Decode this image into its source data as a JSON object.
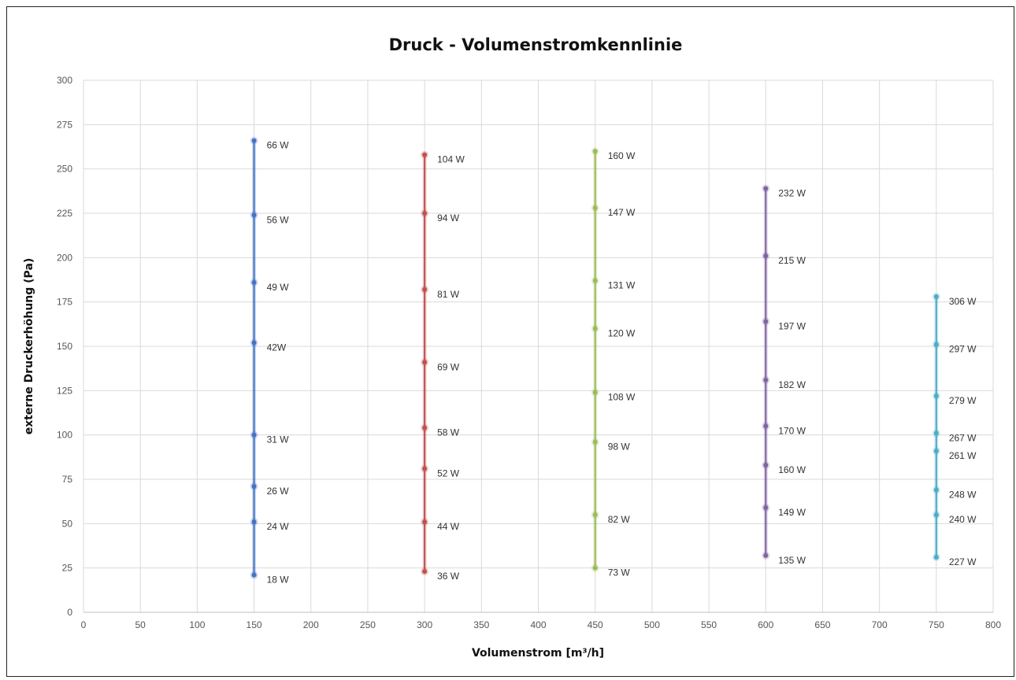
{
  "chart_data": {
    "type": "scatter",
    "title": "Druck - Volumenstromkennlinie",
    "xlabel": "Volumenstrom [m³/h]",
    "ylabel": "externe Druckerhöhung (Pa)",
    "xlim": [
      0,
      800
    ],
    "ylim": [
      0,
      300
    ],
    "x_ticks": [
      0,
      50,
      100,
      150,
      200,
      250,
      300,
      350,
      400,
      450,
      500,
      550,
      600,
      650,
      700,
      750,
      800
    ],
    "y_ticks": [
      0,
      25,
      50,
      75,
      100,
      125,
      150,
      175,
      200,
      225,
      250,
      275,
      300
    ],
    "grid": true,
    "legend": "none",
    "series": [
      {
        "color": "#4472c4",
        "x": 150,
        "points": [
          {
            "y": 266,
            "label": "66 W"
          },
          {
            "y": 224,
            "label": "56 W"
          },
          {
            "y": 186,
            "label": "49 W"
          },
          {
            "y": 152,
            "label": "42W"
          },
          {
            "y": 100,
            "label": "31 W"
          },
          {
            "y": 71,
            "label": "26 W"
          },
          {
            "y": 51,
            "label": "24 W"
          },
          {
            "y": 21,
            "label": "18 W"
          }
        ]
      },
      {
        "color": "#c0504d",
        "x": 300,
        "points": [
          {
            "y": 258,
            "label": "104 W"
          },
          {
            "y": 225,
            "label": "94 W"
          },
          {
            "y": 182,
            "label": "81 W"
          },
          {
            "y": 141,
            "label": "69 W"
          },
          {
            "y": 104,
            "label": "58 W"
          },
          {
            "y": 81,
            "label": "52 W"
          },
          {
            "y": 51,
            "label": "44 W"
          },
          {
            "y": 23,
            "label": "36 W"
          }
        ]
      },
      {
        "color": "#9bbb59",
        "x": 450,
        "points": [
          {
            "y": 260,
            "label": "160 W"
          },
          {
            "y": 228,
            "label": "147 W"
          },
          {
            "y": 187,
            "label": "131 W"
          },
          {
            "y": 160,
            "label": "120 W"
          },
          {
            "y": 124,
            "label": "108 W"
          },
          {
            "y": 96,
            "label": "98 W"
          },
          {
            "y": 55,
            "label": "82 W"
          },
          {
            "y": 25,
            "label": "73 W"
          }
        ]
      },
      {
        "color": "#8064a2",
        "x": 600,
        "points": [
          {
            "y": 239,
            "label": "232 W"
          },
          {
            "y": 201,
            "label": "215 W"
          },
          {
            "y": 164,
            "label": "197 W"
          },
          {
            "y": 131,
            "label": "182 W"
          },
          {
            "y": 105,
            "label": "170 W"
          },
          {
            "y": 83,
            "label": "160 W"
          },
          {
            "y": 59,
            "label": "149 W"
          },
          {
            "y": 32,
            "label": "135 W"
          }
        ]
      },
      {
        "color": "#4bacc6",
        "x": 750,
        "points": [
          {
            "y": 178,
            "label": "306 W"
          },
          {
            "y": 151,
            "label": "297 W"
          },
          {
            "y": 122,
            "label": "279 W"
          },
          {
            "y": 101,
            "label": "267 W"
          },
          {
            "y": 91,
            "label": "261 W"
          },
          {
            "y": 69,
            "label": "248 W"
          },
          {
            "y": 55,
            "label": "240 W"
          },
          {
            "y": 31,
            "label": "227 W"
          }
        ]
      }
    ]
  }
}
